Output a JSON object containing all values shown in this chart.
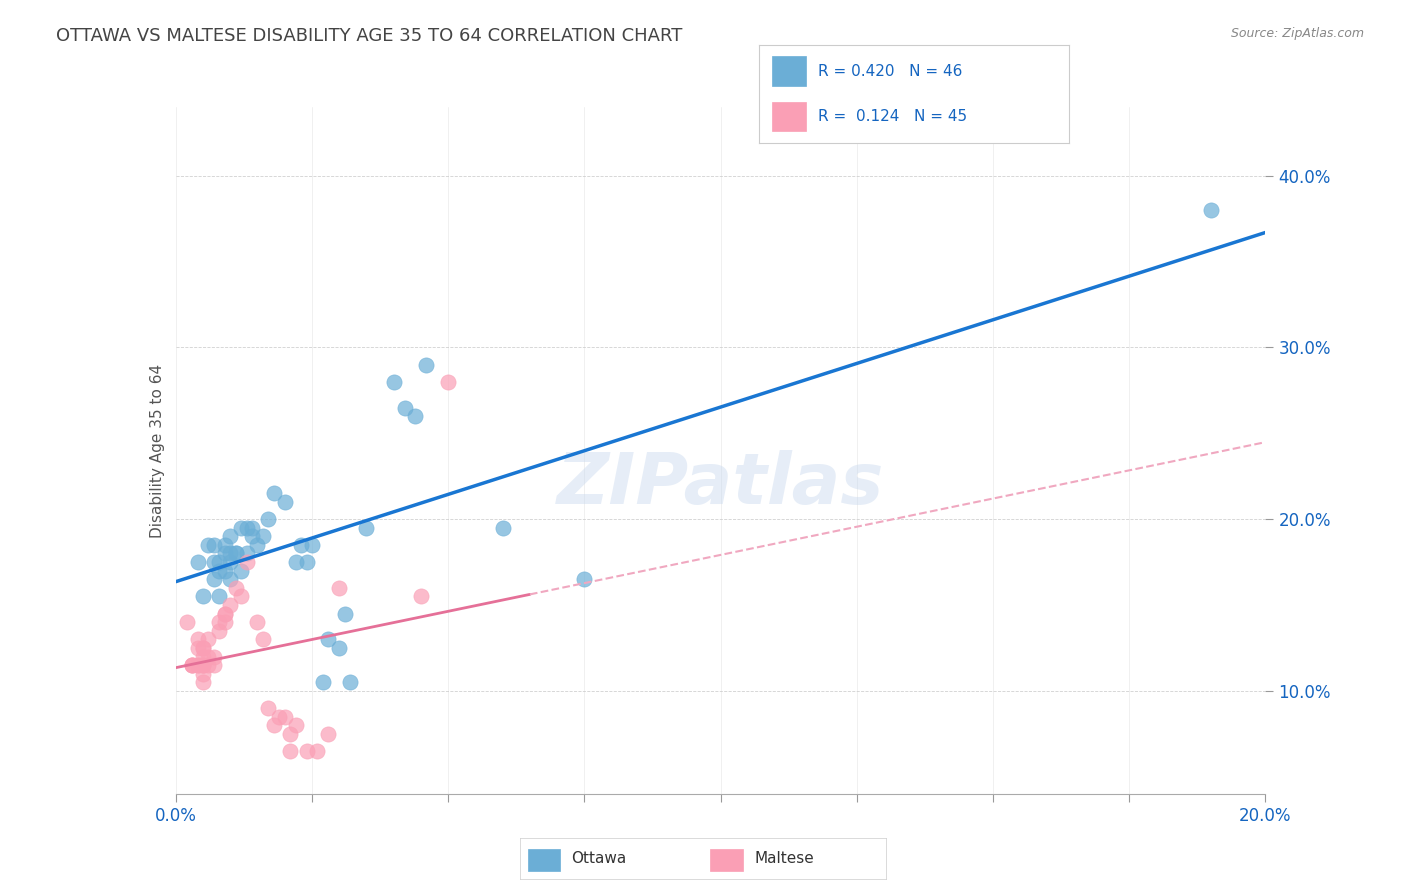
{
  "title": "OTTAWA VS MALTESE DISABILITY AGE 35 TO 64 CORRELATION CHART",
  "source": "Source: ZipAtlas.com",
  "xlim": [
    0.0,
    0.2
  ],
  "ylim": [
    0.04,
    0.44
  ],
  "ottawa_color": "#6baed6",
  "maltese_color": "#fa9fb5",
  "ottawa_line_color": "#1976D2",
  "maltese_solid_color": "#e57098",
  "maltese_dash_color": "#f0a8c0",
  "ottawa_r": 0.42,
  "ottawa_n": 46,
  "maltese_r": 0.124,
  "maltese_n": 45,
  "legend_r_color": "#1565C0",
  "watermark": "ZIPatlas",
  "yticks": [
    0.1,
    0.2,
    0.3,
    0.4
  ],
  "xticks_major": [
    0.0,
    0.2
  ],
  "xticks_minor": [
    0.025,
    0.05,
    0.075,
    0.1,
    0.125,
    0.15,
    0.175
  ],
  "ottawa_points": [
    [
      0.004,
      0.175
    ],
    [
      0.005,
      0.155
    ],
    [
      0.006,
      0.185
    ],
    [
      0.007,
      0.175
    ],
    [
      0.007,
      0.165
    ],
    [
      0.007,
      0.185
    ],
    [
      0.008,
      0.17
    ],
    [
      0.008,
      0.155
    ],
    [
      0.008,
      0.175
    ],
    [
      0.009,
      0.185
    ],
    [
      0.009,
      0.17
    ],
    [
      0.009,
      0.18
    ],
    [
      0.01,
      0.165
    ],
    [
      0.01,
      0.175
    ],
    [
      0.01,
      0.18
    ],
    [
      0.01,
      0.19
    ],
    [
      0.011,
      0.18
    ],
    [
      0.011,
      0.18
    ],
    [
      0.012,
      0.195
    ],
    [
      0.012,
      0.17
    ],
    [
      0.013,
      0.18
    ],
    [
      0.013,
      0.195
    ],
    [
      0.014,
      0.195
    ],
    [
      0.014,
      0.19
    ],
    [
      0.015,
      0.185
    ],
    [
      0.016,
      0.19
    ],
    [
      0.017,
      0.2
    ],
    [
      0.018,
      0.215
    ],
    [
      0.02,
      0.21
    ],
    [
      0.022,
      0.175
    ],
    [
      0.023,
      0.185
    ],
    [
      0.024,
      0.175
    ],
    [
      0.025,
      0.185
    ],
    [
      0.027,
      0.105
    ],
    [
      0.028,
      0.13
    ],
    [
      0.03,
      0.125
    ],
    [
      0.031,
      0.145
    ],
    [
      0.032,
      0.105
    ],
    [
      0.035,
      0.195
    ],
    [
      0.04,
      0.28
    ],
    [
      0.042,
      0.265
    ],
    [
      0.044,
      0.26
    ],
    [
      0.046,
      0.29
    ],
    [
      0.06,
      0.195
    ],
    [
      0.075,
      0.165
    ],
    [
      0.19,
      0.38
    ]
  ],
  "maltese_points": [
    [
      0.002,
      0.14
    ],
    [
      0.003,
      0.115
    ],
    [
      0.003,
      0.115
    ],
    [
      0.003,
      0.115
    ],
    [
      0.004,
      0.115
    ],
    [
      0.004,
      0.13
    ],
    [
      0.004,
      0.115
    ],
    [
      0.004,
      0.125
    ],
    [
      0.005,
      0.105
    ],
    [
      0.005,
      0.115
    ],
    [
      0.005,
      0.115
    ],
    [
      0.005,
      0.125
    ],
    [
      0.005,
      0.115
    ],
    [
      0.005,
      0.12
    ],
    [
      0.005,
      0.11
    ],
    [
      0.005,
      0.125
    ],
    [
      0.006,
      0.115
    ],
    [
      0.006,
      0.13
    ],
    [
      0.006,
      0.12
    ],
    [
      0.007,
      0.12
    ],
    [
      0.007,
      0.115
    ],
    [
      0.008,
      0.135
    ],
    [
      0.008,
      0.14
    ],
    [
      0.009,
      0.145
    ],
    [
      0.009,
      0.145
    ],
    [
      0.009,
      0.14
    ],
    [
      0.01,
      0.15
    ],
    [
      0.011,
      0.16
    ],
    [
      0.012,
      0.155
    ],
    [
      0.013,
      0.175
    ],
    [
      0.015,
      0.14
    ],
    [
      0.016,
      0.13
    ],
    [
      0.017,
      0.09
    ],
    [
      0.018,
      0.08
    ],
    [
      0.019,
      0.085
    ],
    [
      0.02,
      0.085
    ],
    [
      0.021,
      0.075
    ],
    [
      0.021,
      0.065
    ],
    [
      0.022,
      0.08
    ],
    [
      0.024,
      0.065
    ],
    [
      0.026,
      0.065
    ],
    [
      0.028,
      0.075
    ],
    [
      0.045,
      0.155
    ],
    [
      0.05,
      0.28
    ],
    [
      0.03,
      0.16
    ]
  ]
}
